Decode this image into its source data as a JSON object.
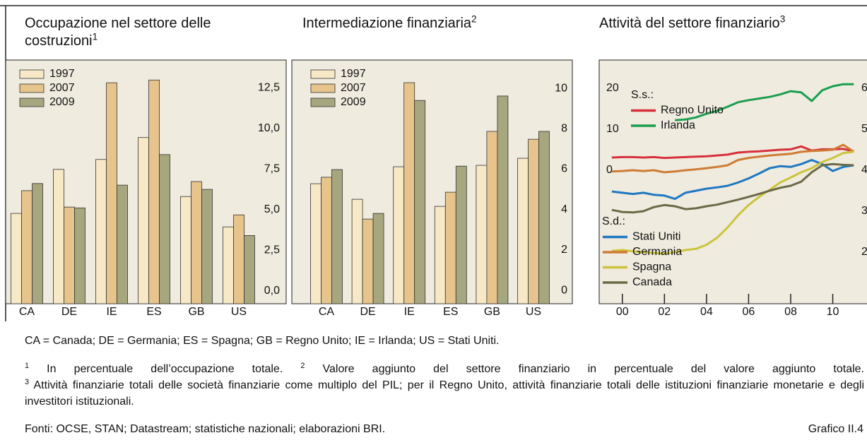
{
  "chart_data": [
    {
      "type": "bar",
      "title": "Occupazione nel settore delle costruzioni",
      "title_note": "1",
      "categories": [
        "CA",
        "DE",
        "IE",
        "ES",
        "GB",
        "US"
      ],
      "series": [
        {
          "name": "1997",
          "color": "#f7e8c6",
          "values": [
            4.76,
            7.47,
            8.08,
            9.43,
            5.8,
            3.93
          ]
        },
        {
          "name": "2007",
          "color": "#e6c48c",
          "values": [
            6.16,
            5.15,
            12.8,
            12.97,
            6.72,
            4.67
          ]
        },
        {
          "name": "2009",
          "color": "#a6a67f",
          "values": [
            6.6,
            5.1,
            6.5,
            8.38,
            6.24,
            3.4
          ]
        }
      ],
      "ylim": [
        -0.8,
        14.2
      ],
      "yticks": [
        {
          "value": 0,
          "label": "0,0"
        },
        {
          "value": 2.5,
          "label": "2,5"
        },
        {
          "value": 5,
          "label": "5,0"
        },
        {
          "value": 7.5,
          "label": "7,5"
        },
        {
          "value": 10,
          "label": "10,0"
        },
        {
          "value": 12.5,
          "label": "12,5"
        }
      ]
    },
    {
      "type": "bar",
      "title": "Intermediazione finanziaria",
      "title_note": "2",
      "categories": [
        "CA",
        "DE",
        "IE",
        "ES",
        "GB",
        "US"
      ],
      "series": [
        {
          "name": "1997",
          "color": "#f7e8c6",
          "values": [
            5.28,
            4.51,
            6.12,
            4.16,
            6.19,
            6.54
          ]
        },
        {
          "name": "2007",
          "color": "#e6c48c",
          "values": [
            5.6,
            3.53,
            10.28,
            4.86,
            7.87,
            7.48
          ]
        },
        {
          "name": "2009",
          "color": "#a6a67f",
          "values": [
            5.98,
            3.81,
            9.4,
            6.15,
            9.62,
            7.87
          ]
        }
      ],
      "ylim": [
        -0.66,
        11.4
      ],
      "yticks": [
        0,
        2,
        4,
        6,
        8,
        10
      ]
    },
    {
      "type": "line",
      "title": "Attività del settore finanziario",
      "title_note": "3",
      "legend_titles": {
        "y": "S.s.:",
        "y2": "S.d.:"
      },
      "x": [
        -0.5,
        0,
        0.5,
        1,
        1.5,
        2,
        2.5,
        3,
        3.5,
        4,
        4.5,
        5,
        5.5,
        6,
        6.5,
        7,
        7.5,
        8,
        8.5,
        9,
        9.5,
        10,
        10.5,
        11
      ],
      "series": [
        {
          "name": "Regno Unito",
          "color": "#d7303b",
          "axis": "y",
          "values": [
            3.1,
            3.2,
            3.2,
            3.1,
            3.2,
            3.0,
            3.1,
            3.2,
            3.3,
            3.4,
            3.6,
            3.8,
            4.3,
            4.5,
            4.6,
            4.8,
            5.0,
            5.1,
            5.8,
            4.8,
            5.1,
            5.1,
            5.2,
            4.6
          ]
        },
        {
          "name": "Irlanda",
          "color": "#1b9e4f",
          "axis": "y",
          "values": [
            null,
            null,
            null,
            null,
            null,
            null,
            12.2,
            12.4,
            12.9,
            13.8,
            14.5,
            15.5,
            16.6,
            17.1,
            17.5,
            17.9,
            18.5,
            19.3,
            19.0,
            16.9,
            19.5,
            20.5,
            21.0,
            21.0
          ]
        },
        {
          "name": "Stati Uniti",
          "color": "#1f78c1",
          "axis": "y2",
          "values": [
            3.48,
            3.45,
            3.42,
            3.45,
            3.4,
            3.38,
            3.3,
            3.45,
            3.5,
            3.55,
            3.58,
            3.62,
            3.7,
            3.8,
            3.92,
            4.05,
            4.1,
            4.08,
            4.15,
            4.25,
            4.15,
            3.98,
            4.08,
            4.12
          ]
        },
        {
          "name": "Germania",
          "color": "#d07b34",
          "axis": "y2",
          "values": [
            3.97,
            3.98,
            4.0,
            3.98,
            4.0,
            3.95,
            3.97,
            4.0,
            4.02,
            4.05,
            4.08,
            4.12,
            4.25,
            4.3,
            4.33,
            4.36,
            4.38,
            4.4,
            4.45,
            4.47,
            4.48,
            4.5,
            4.62,
            4.45
          ]
        },
        {
          "name": "Spagna",
          "color": "#cbc43c",
          "axis": "y2",
          "values": [
            2.03,
            2.05,
            2.02,
            2.0,
            1.98,
            1.96,
            2.0,
            2.05,
            2.08,
            2.18,
            2.35,
            2.6,
            2.9,
            3.15,
            3.35,
            3.52,
            3.7,
            3.82,
            3.95,
            4.05,
            4.2,
            4.3,
            4.42,
            4.45
          ]
        },
        {
          "name": "Canada",
          "color": "#6b6a46",
          "axis": "y2",
          "values": [
            3.03,
            2.98,
            2.97,
            3.0,
            3.1,
            3.15,
            3.12,
            3.05,
            3.07,
            3.12,
            3.16,
            3.22,
            3.28,
            3.35,
            3.42,
            3.5,
            3.57,
            3.62,
            3.72,
            3.95,
            4.12,
            4.15,
            4.13,
            4.12
          ]
        }
      ],
      "xlim": [
        -1.1,
        12.4
      ],
      "xticks": [
        {
          "value": 0,
          "label": "00"
        },
        {
          "value": 2,
          "label": "02"
        },
        {
          "value": 4,
          "label": "04"
        },
        {
          "value": 6,
          "label": "06"
        },
        {
          "value": 8,
          "label": "08"
        },
        10
      ],
      "ylim": [
        -32.6,
        26.9
      ],
      "yticks": [
        0,
        10,
        20
      ],
      "y2lim": [
        0.74,
        6.69
      ],
      "y2ticks": [
        2,
        3,
        4,
        5,
        6
      ]
    }
  ],
  "abbreviations": "CA = Canada; DE = Germania; ES = Spagna; GB = Regno Unito; IE = Irlanda; US = Stati Uniti.",
  "footnotes": [
    {
      "mark": "1",
      "text": "In percentuale dell’occupazione totale."
    },
    {
      "mark": "2",
      "text": "Valore aggiunto del settore finanziario in percentuale del valore aggiunto totale."
    },
    {
      "mark": "3",
      "text": "Attività finanziarie totali delle società finanziarie come multiplo del PIL; per il Regno Unito, attività finanziarie totali delle istituzioni finanziarie monetarie e degli investitori istituzionali."
    }
  ],
  "sources": "Fonti: OCSE, STAN; Datastream; statistiche nazionali; elaborazioni BRI.",
  "figure_label": "Grafico II.4"
}
